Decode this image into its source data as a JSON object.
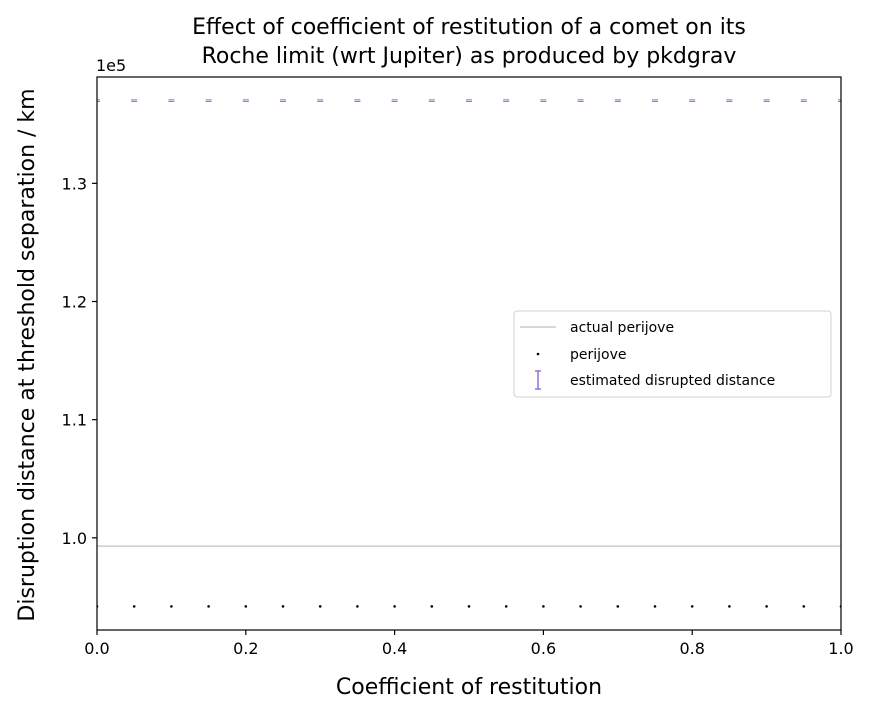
{
  "chart_data": {
    "type": "scatter",
    "title": [
      "Effect of coefficient of restitution of a comet on its",
      "Roche limit (wrt Jupiter) as produced by pkdgrav"
    ],
    "xlabel": "Coefficient of restitution",
    "ylabel": "Disruption distance at threshold separation / km",
    "y_offset_label": "1e5",
    "xlim": [
      0.0,
      1.0
    ],
    "ylim": [
      0.922,
      1.39
    ],
    "xticks": [
      0.0,
      0.2,
      0.4,
      0.6,
      0.8,
      1.0
    ],
    "xtick_labels": [
      "0.0",
      "0.2",
      "0.4",
      "0.6",
      "0.8",
      "1.0"
    ],
    "yticks": [
      1.0,
      1.1,
      1.2,
      1.3
    ],
    "ytick_labels": [
      "1.0",
      "1.1",
      "1.2",
      "1.3"
    ],
    "grid": false,
    "legend_position": "center-right",
    "series": [
      {
        "name": "actual perijove",
        "kind": "hline",
        "y": 0.993,
        "color": "#cccccc"
      },
      {
        "name": "perijove",
        "kind": "points",
        "x": [
          0.0,
          0.05,
          0.1,
          0.15,
          0.2,
          0.25,
          0.3,
          0.35,
          0.4,
          0.45,
          0.5,
          0.55,
          0.6,
          0.65,
          0.7,
          0.75,
          0.8,
          0.85,
          0.9,
          0.95,
          1.0
        ],
        "y": [
          0.942,
          0.942,
          0.942,
          0.942,
          0.942,
          0.942,
          0.942,
          0.942,
          0.942,
          0.942,
          0.942,
          0.942,
          0.942,
          0.942,
          0.942,
          0.942,
          0.942,
          0.942,
          0.942,
          0.942,
          0.942
        ],
        "color": "#000000"
      },
      {
        "name": "estimated disrupted distance",
        "kind": "errorbar",
        "x": [
          0.0,
          0.05,
          0.1,
          0.15,
          0.2,
          0.25,
          0.3,
          0.35,
          0.4,
          0.45,
          0.5,
          0.55,
          0.6,
          0.65,
          0.7,
          0.75,
          0.8,
          0.85,
          0.9,
          0.95,
          1.0
        ],
        "y": [
          1.37,
          1.37,
          1.37,
          1.37,
          1.37,
          1.37,
          1.37,
          1.37,
          1.37,
          1.37,
          1.37,
          1.37,
          1.37,
          1.37,
          1.37,
          1.37,
          1.37,
          1.37,
          1.37,
          1.37,
          1.37
        ],
        "color": "#9370DB"
      }
    ]
  }
}
